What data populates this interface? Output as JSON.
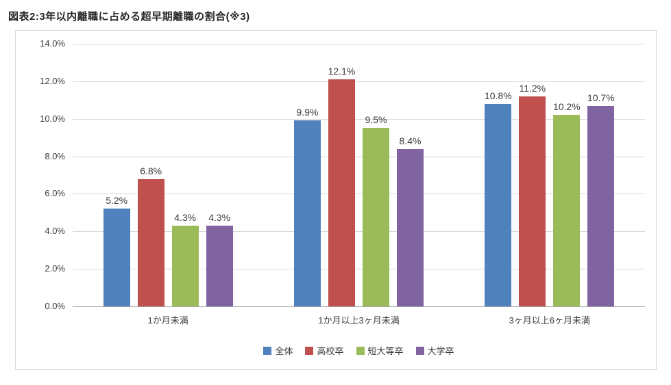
{
  "chart_data": {
    "type": "bar",
    "title": "図表2:3年以内離職に占める超早期離職の割合(※3)",
    "categories": [
      "1か月未満",
      "1か月以上3ヶ月未満",
      "3ヶ月以上6ヶ月未満"
    ],
    "series": [
      {
        "name": "全体",
        "color": "#4F81BD",
        "values": [
          5.2,
          9.9,
          10.8
        ],
        "labels": [
          "5.2%",
          "9.9%",
          "10.8%"
        ]
      },
      {
        "name": "高校卒",
        "color": "#C0504D",
        "values": [
          6.8,
          12.1,
          11.2
        ],
        "labels": [
          "6.8%",
          "12.1%",
          "11.2%"
        ]
      },
      {
        "name": "短大等卒",
        "color": "#9BBB59",
        "values": [
          4.3,
          9.5,
          10.2
        ],
        "labels": [
          "4.3%",
          "9.5%",
          "10.2%"
        ]
      },
      {
        "name": "大学卒",
        "color": "#8064A2",
        "values": [
          4.3,
          8.4,
          10.7
        ],
        "labels": [
          "4.3%",
          "8.4%",
          "10.7%"
        ]
      }
    ],
    "ylim": [
      0,
      14
    ],
    "y_ticks": [
      {
        "value": 0,
        "label": "0.0%"
      },
      {
        "value": 2,
        "label": "2.0%"
      },
      {
        "value": 4,
        "label": "4.0%"
      },
      {
        "value": 6,
        "label": "6.0%"
      },
      {
        "value": 8,
        "label": "8.0%"
      },
      {
        "value": 10,
        "label": "10.0%"
      },
      {
        "value": 12,
        "label": "12.0%"
      },
      {
        "value": 14,
        "label": "14.0%"
      }
    ],
    "xlabel": "",
    "ylabel": "",
    "grid": true,
    "legend_position": "bottom"
  }
}
